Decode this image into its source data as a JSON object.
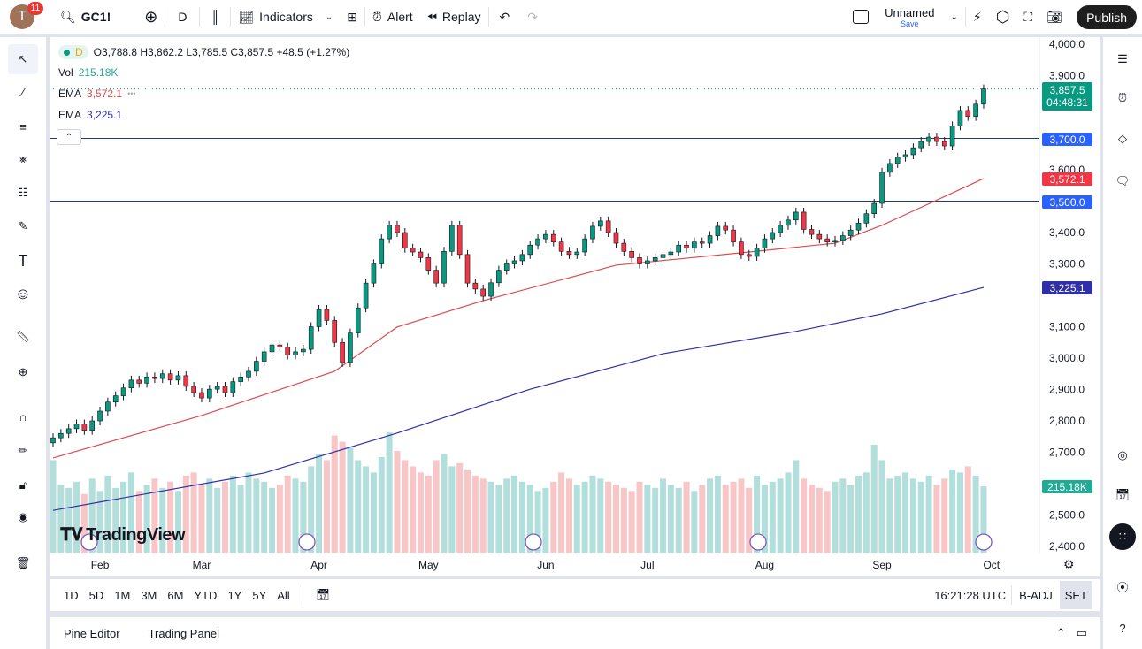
{
  "topbar": {
    "avatar_letter": "T",
    "notification_count": "11",
    "symbol": "GC1!",
    "interval": "D",
    "indicators_label": "Indicators",
    "alert_label": "Alert",
    "replay_label": "Replay",
    "layout_name": "Unnamed",
    "save_label": "Save",
    "publish_label": "Publish"
  },
  "legend": {
    "interval": "D",
    "ohlc": "O3,788.8 H3,862.2 L3,785.5 C3,857.5 +48.5 (+1.27%)",
    "vol_label": "Vol",
    "vol_value": "215.18K",
    "ema1_label": "EMA",
    "ema1_value": "3,572.1",
    "ema2_label": "EMA",
    "ema2_value": "3,225.1"
  },
  "price_labels": {
    "last_price": "3,857.5",
    "countdown": "04:48:31",
    "line1": "3,700.0",
    "ema1": "3,572.1",
    "line2": "3,500.0",
    "ema2": "3,225.1",
    "volume": "215.18K"
  },
  "colors": {
    "up": "#089981",
    "down": "#f23645",
    "ema1": "#e04a4a",
    "ema2": "#2f2fa8",
    "hline": "#1e3a6e",
    "line_label": "#2962ff",
    "vol_up": "#b2dfdb",
    "vol_down": "#f8c6c6"
  },
  "logo": "TradingView",
  "rangebar": {
    "ranges": [
      "1D",
      "5D",
      "1M",
      "3M",
      "6M",
      "YTD",
      "1Y",
      "5Y",
      "All"
    ],
    "time": "16:21:28 UTC",
    "adj": "B-ADJ",
    "session": "SET"
  },
  "bottom_panel": {
    "tabs": [
      "Pine Editor",
      "Trading Panel"
    ]
  },
  "chart_data": {
    "type": "candlestick",
    "symbol": "GC1!",
    "interval": "D",
    "ylim": [
      2400,
      4000
    ],
    "y_ticks": [
      "4,000.0",
      "3,900.0",
      "3,600.0",
      "3,400.0",
      "3,300.0",
      "3,100.0",
      "3,000.0",
      "2,900.0",
      "2,800.0",
      "2,700.0",
      "2,500.0",
      "2,400.0"
    ],
    "y_tick_values": [
      4000,
      3900,
      3600,
      3400,
      3300,
      3100,
      3000,
      2900,
      2800,
      2700,
      2500,
      2400
    ],
    "x_ticks": [
      "Feb",
      "Mar",
      "Apr",
      "May",
      "Jun",
      "Jul",
      "Aug",
      "Sep",
      "Oct"
    ],
    "x_tick_bar_index": [
      6,
      19,
      34,
      48,
      63,
      76,
      91,
      106,
      120
    ],
    "closes": [
      2746,
      2760,
      2775,
      2790,
      2770,
      2800,
      2831,
      2860,
      2880,
      2905,
      2930,
      2920,
      2940,
      2935,
      2950,
      2930,
      2944,
      2910,
      2890,
      2873,
      2901,
      2910,
      2890,
      2925,
      2940,
      2958,
      2990,
      3020,
      3042,
      3035,
      3010,
      3020,
      3028,
      3100,
      3155,
      3120,
      3050,
      2986,
      3080,
      3160,
      3239,
      3300,
      3380,
      3423,
      3400,
      3350,
      3338,
      3320,
      3280,
      3239,
      3340,
      3423,
      3330,
      3239,
      3220,
      3197,
      3240,
      3280,
      3300,
      3310,
      3330,
      3360,
      3380,
      3394,
      3370,
      3340,
      3330,
      3338,
      3380,
      3420,
      3437,
      3400,
      3366,
      3340,
      3320,
      3300,
      3310,
      3320,
      3330,
      3338,
      3360,
      3350,
      3370,
      3366,
      3390,
      3420,
      3408,
      3370,
      3330,
      3324,
      3350,
      3380,
      3400,
      3423,
      3440,
      3465,
      3410,
      3394,
      3380,
      3370,
      3375,
      3390,
      3408,
      3430,
      3460,
      3493,
      3592,
      3620,
      3640,
      3648,
      3670,
      3690,
      3704,
      3690,
      3676,
      3740,
      3789,
      3770,
      3809,
      3857.5
    ],
    "first_open": 2730,
    "volume_k": [
      300,
      220,
      210,
      230,
      190,
      240,
      200,
      250,
      210,
      230,
      260,
      200,
      220,
      240,
      210,
      230,
      200,
      250,
      260,
      220,
      240,
      210,
      230,
      250,
      220,
      260,
      240,
      230,
      210,
      220,
      250,
      240,
      230,
      280,
      320,
      300,
      380,
      360,
      340,
      300,
      280,
      260,
      310,
      390,
      330,
      300,
      280,
      260,
      250,
      300,
      320,
      280,
      290,
      270,
      250,
      240,
      230,
      220,
      240,
      250,
      230,
      220,
      200,
      210,
      230,
      260,
      240,
      220,
      230,
      250,
      240,
      230,
      220,
      210,
      200,
      230,
      220,
      210,
      240,
      220,
      210,
      230,
      200,
      220,
      240,
      250,
      220,
      230,
      240,
      210,
      250,
      220,
      230,
      240,
      260,
      300,
      240,
      220,
      210,
      200,
      230,
      240,
      220,
      250,
      260,
      350,
      300,
      240,
      250,
      260,
      240,
      230,
      250,
      220,
      240,
      270,
      260,
      280,
      250,
      215.18
    ],
    "ema_series": [
      {
        "name": "EMA",
        "last": 3572.1,
        "points": [
          [
            0,
            2682
          ],
          [
            19,
            2817
          ],
          [
            36,
            2958
          ],
          [
            44,
            3099
          ],
          [
            55,
            3183
          ],
          [
            72,
            3296
          ],
          [
            89,
            3338
          ],
          [
            100,
            3366
          ],
          [
            106,
            3423
          ],
          [
            119,
            3572.1
          ]
        ]
      },
      {
        "name": "EMA",
        "last": 3225.1,
        "points": [
          [
            0,
            2515
          ],
          [
            27,
            2634
          ],
          [
            44,
            2761
          ],
          [
            61,
            2901
          ],
          [
            78,
            3014
          ],
          [
            95,
            3085
          ],
          [
            106,
            3141
          ],
          [
            119,
            3225.1
          ]
        ]
      }
    ],
    "horizontal_lines": [
      3700,
      3500
    ],
    "last_price": 3857.5
  }
}
